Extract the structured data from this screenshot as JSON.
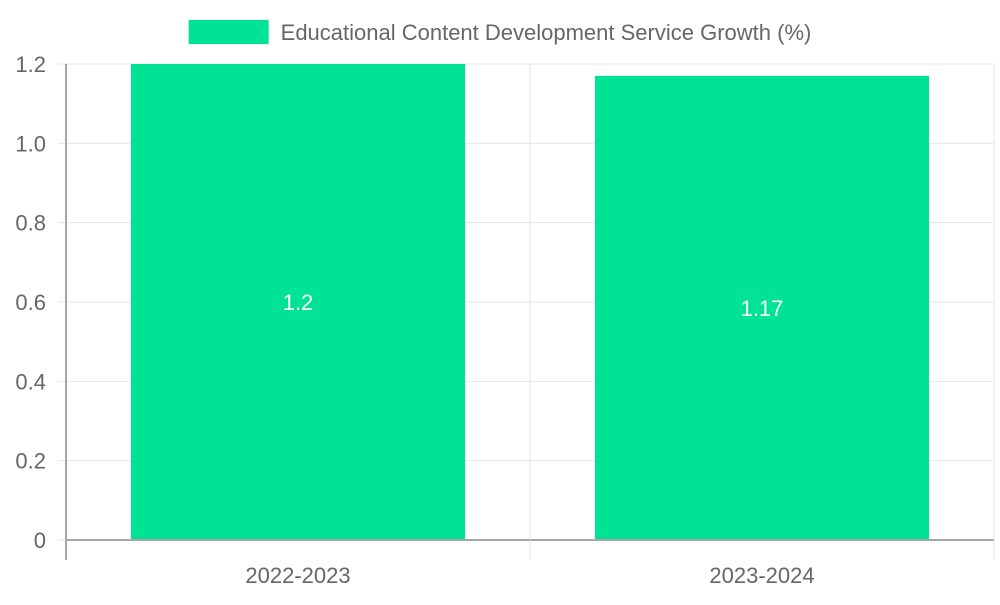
{
  "chart_data": {
    "type": "bar",
    "categories": [
      "2022-2023",
      "2023-2024"
    ],
    "series": [
      {
        "name": "Educational Content Development Service Growth (%)",
        "values": [
          1.2,
          1.17
        ],
        "color": "#00e396"
      }
    ],
    "data_labels": [
      "1.2",
      "1.17"
    ],
    "ylim": [
      0,
      1.2
    ],
    "y_ticks": [
      0,
      0.2,
      0.4,
      0.6,
      0.8,
      1.0,
      1.2
    ],
    "y_tick_labels": [
      "0",
      "0.2",
      "0.4",
      "0.6",
      "0.8",
      "1.0",
      "1.2"
    ],
    "grid": true,
    "legend_position": "top",
    "colors": {
      "bar": "#00e396",
      "grid": "#e6e6e6",
      "axis": "#a6a6a6",
      "text": "#666666",
      "label": "#ffffff"
    }
  }
}
